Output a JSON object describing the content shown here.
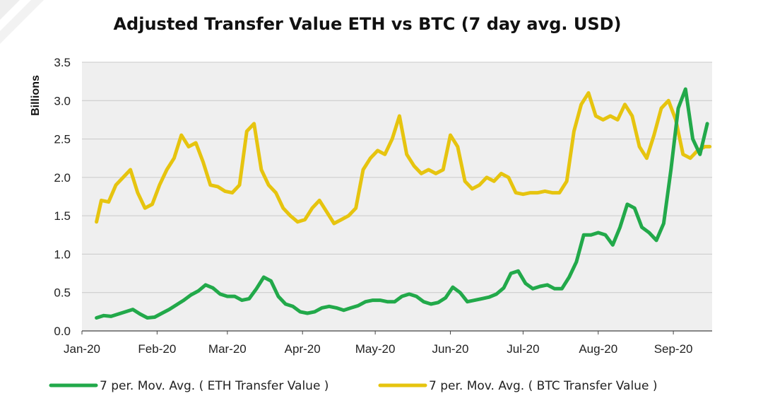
{
  "chart_data": {
    "type": "line",
    "title": "Adjusted Transfer Value ETH vs BTC (7 day avg. USD)",
    "xlabel": "",
    "ylabel": "Billions",
    "ylim": [
      0,
      3.5
    ],
    "yticks": [
      "0.0",
      "0.5",
      "1.0",
      "1.5",
      "2.0",
      "2.5",
      "3.0",
      "3.5"
    ],
    "xticks": [
      "Jan-20",
      "Feb-20",
      "Mar-20",
      "Apr-20",
      "May-20",
      "Jun-20",
      "Jul-20",
      "Aug-20",
      "Sep-20"
    ],
    "grid": true,
    "legend_position": "bottom",
    "series": [
      {
        "name": "7 per. Mov. Avg. ( ETH Transfer Value )",
        "color": "#22a94a",
        "x": [
          "2020-01-07",
          "2020-01-10",
          "2020-01-13",
          "2020-01-16",
          "2020-01-19",
          "2020-01-22",
          "2020-01-25",
          "2020-01-28",
          "2020-01-31",
          "2020-02-03",
          "2020-02-06",
          "2020-02-09",
          "2020-02-12",
          "2020-02-15",
          "2020-02-18",
          "2020-02-21",
          "2020-02-24",
          "2020-02-27",
          "2020-03-01",
          "2020-03-04",
          "2020-03-07",
          "2020-03-10",
          "2020-03-13",
          "2020-03-16",
          "2020-03-19",
          "2020-03-22",
          "2020-03-25",
          "2020-03-28",
          "2020-03-31",
          "2020-04-03",
          "2020-04-06",
          "2020-04-09",
          "2020-04-12",
          "2020-04-15",
          "2020-04-18",
          "2020-04-21",
          "2020-04-24",
          "2020-04-27",
          "2020-04-30",
          "2020-05-03",
          "2020-05-06",
          "2020-05-09",
          "2020-05-12",
          "2020-05-15",
          "2020-05-18",
          "2020-05-21",
          "2020-05-24",
          "2020-05-27",
          "2020-05-30",
          "2020-06-02",
          "2020-06-05",
          "2020-06-08",
          "2020-06-11",
          "2020-06-14",
          "2020-06-17",
          "2020-06-20",
          "2020-06-23",
          "2020-06-26",
          "2020-06-29",
          "2020-07-02",
          "2020-07-05",
          "2020-07-08",
          "2020-07-11",
          "2020-07-14",
          "2020-07-17",
          "2020-07-20",
          "2020-07-23",
          "2020-07-26",
          "2020-07-29",
          "2020-08-01",
          "2020-08-04",
          "2020-08-07",
          "2020-08-10",
          "2020-08-13",
          "2020-08-16",
          "2020-08-19",
          "2020-08-22",
          "2020-08-25",
          "2020-08-28",
          "2020-08-31",
          "2020-09-03",
          "2020-09-06",
          "2020-09-09",
          "2020-09-12",
          "2020-09-15"
        ],
        "values": [
          0.17,
          0.2,
          0.19,
          0.22,
          0.25,
          0.28,
          0.22,
          0.17,
          0.18,
          0.23,
          0.28,
          0.34,
          0.4,
          0.47,
          0.52,
          0.6,
          0.56,
          0.48,
          0.45,
          0.45,
          0.4,
          0.42,
          0.55,
          0.7,
          0.65,
          0.45,
          0.35,
          0.32,
          0.25,
          0.23,
          0.25,
          0.3,
          0.32,
          0.3,
          0.27,
          0.3,
          0.33,
          0.38,
          0.4,
          0.4,
          0.38,
          0.38,
          0.45,
          0.48,
          0.45,
          0.38,
          0.35,
          0.37,
          0.43,
          0.57,
          0.5,
          0.38,
          0.4,
          0.42,
          0.44,
          0.48,
          0.56,
          0.75,
          0.78,
          0.62,
          0.55,
          0.58,
          0.6,
          0.55,
          0.55,
          0.7,
          0.9,
          1.25,
          1.25,
          1.28,
          1.25,
          1.12,
          1.35,
          1.65,
          1.6,
          1.35,
          1.28,
          1.18,
          1.4,
          2.1,
          2.9,
          3.15,
          2.5,
          2.3,
          2.7
        ]
      },
      {
        "name": "7 per. Mov. Avg. ( BTC Transfer Value )",
        "color": "#e6c40f",
        "x": [
          "2020-01-07",
          "2020-01-09",
          "2020-01-12",
          "2020-01-15",
          "2020-01-18",
          "2020-01-21",
          "2020-01-24",
          "2020-01-27",
          "2020-01-30",
          "2020-02-02",
          "2020-02-05",
          "2020-02-08",
          "2020-02-11",
          "2020-02-14",
          "2020-02-17",
          "2020-02-20",
          "2020-02-23",
          "2020-02-26",
          "2020-02-29",
          "2020-03-03",
          "2020-03-06",
          "2020-03-09",
          "2020-03-12",
          "2020-03-15",
          "2020-03-18",
          "2020-03-21",
          "2020-03-24",
          "2020-03-27",
          "2020-03-30",
          "2020-04-02",
          "2020-04-05",
          "2020-04-08",
          "2020-04-11",
          "2020-04-14",
          "2020-04-17",
          "2020-04-20",
          "2020-04-23",
          "2020-04-26",
          "2020-04-29",
          "2020-05-02",
          "2020-05-05",
          "2020-05-08",
          "2020-05-11",
          "2020-05-14",
          "2020-05-17",
          "2020-05-20",
          "2020-05-23",
          "2020-05-26",
          "2020-05-29",
          "2020-06-01",
          "2020-06-04",
          "2020-06-07",
          "2020-06-10",
          "2020-06-13",
          "2020-06-16",
          "2020-06-19",
          "2020-06-22",
          "2020-06-25",
          "2020-06-28",
          "2020-07-01",
          "2020-07-04",
          "2020-07-07",
          "2020-07-10",
          "2020-07-13",
          "2020-07-16",
          "2020-07-19",
          "2020-07-22",
          "2020-07-25",
          "2020-07-28",
          "2020-07-31",
          "2020-08-03",
          "2020-08-06",
          "2020-08-09",
          "2020-08-12",
          "2020-08-15",
          "2020-08-18",
          "2020-08-21",
          "2020-08-24",
          "2020-08-27",
          "2020-08-30",
          "2020-09-02",
          "2020-09-05",
          "2020-09-08",
          "2020-09-11",
          "2020-09-14",
          "2020-09-16"
        ],
        "values": [
          1.42,
          1.7,
          1.68,
          1.9,
          2.0,
          2.1,
          1.8,
          1.6,
          1.65,
          1.9,
          2.1,
          2.25,
          2.55,
          2.4,
          2.45,
          2.2,
          1.9,
          1.88,
          1.82,
          1.8,
          1.9,
          2.6,
          2.7,
          2.1,
          1.9,
          1.8,
          1.6,
          1.5,
          1.42,
          1.45,
          1.6,
          1.7,
          1.55,
          1.4,
          1.45,
          1.5,
          1.6,
          2.1,
          2.25,
          2.35,
          2.3,
          2.5,
          2.8,
          2.3,
          2.15,
          2.05,
          2.1,
          2.05,
          2.1,
          2.55,
          2.4,
          1.95,
          1.85,
          1.9,
          2.0,
          1.95,
          2.05,
          2.0,
          1.8,
          1.78,
          1.8,
          1.8,
          1.82,
          1.8,
          1.8,
          1.95,
          2.6,
          2.95,
          3.1,
          2.8,
          2.75,
          2.8,
          2.75,
          2.95,
          2.8,
          2.4,
          2.25,
          2.55,
          2.9,
          3.0,
          2.75,
          2.3,
          2.25,
          2.35,
          2.4,
          2.4
        ]
      }
    ]
  }
}
